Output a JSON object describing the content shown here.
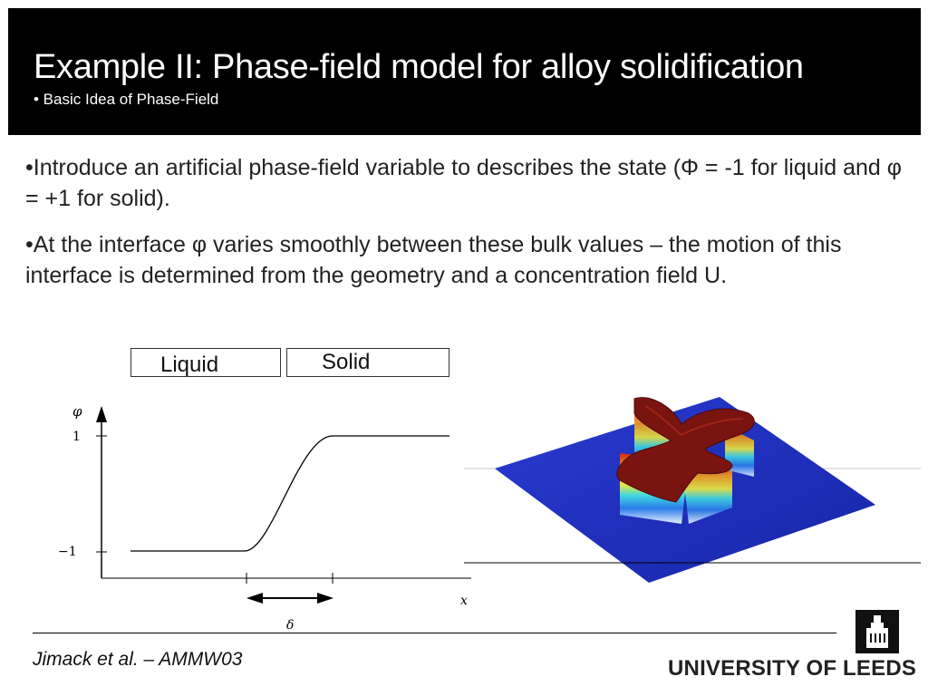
{
  "slide": {
    "title": "Example II: Phase-field model for alloy solidification",
    "subtitle": "• Basic Idea of Phase-Field",
    "bullets": [
      "•Introduce an artificial phase-field variable to describes the state (Φ = -1 for liquid and φ = +1 for solid).",
      "•At the interface φ varies smoothly between these bulk values – the motion of this interface is determined from the geometry and a concentration field U."
    ]
  },
  "diagram": {
    "liquid_label": "Liquid",
    "solid_label": "Solid",
    "y_axis_label": "φ",
    "y_tick_top": "1",
    "y_tick_bottom": "−1",
    "x_axis_label": "x",
    "width_label": "δ"
  },
  "footer": {
    "citation": "Jimack et al. – AMMW03",
    "university": "UNIVERSITY OF LEEDS"
  },
  "colors": {
    "header_bg": "#000000",
    "plane_blue": "#1f2fbf",
    "crystal_top": "#7a1410"
  },
  "icons": {
    "logo": "university-tower-icon",
    "arrow": "double-arrow-icon"
  }
}
